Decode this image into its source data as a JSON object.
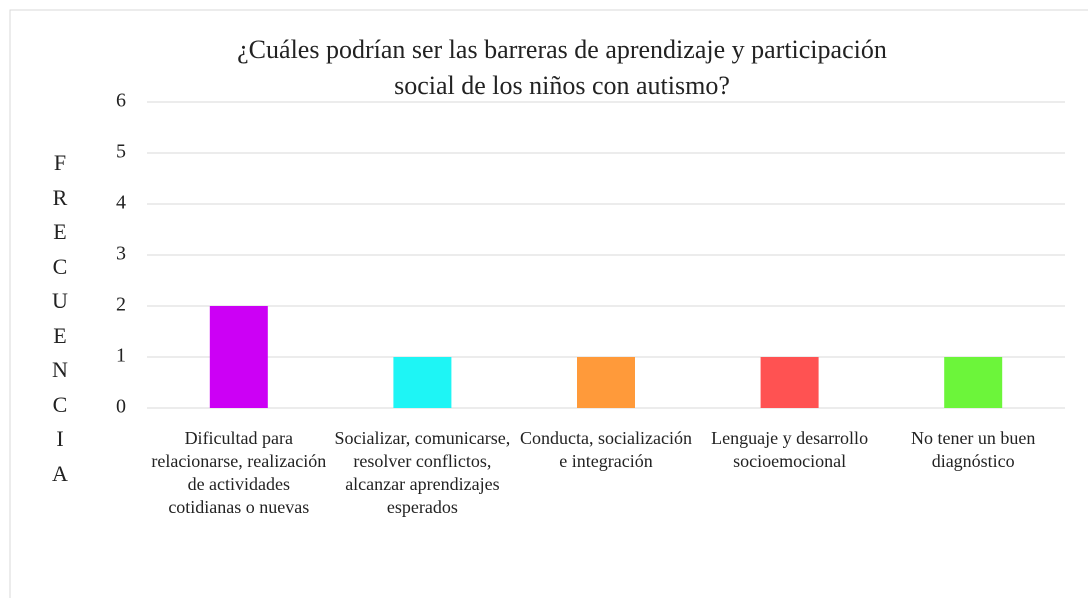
{
  "chart_data": {
    "type": "bar",
    "title": [
      "¿Cuáles podrían ser las barreras de aprendizaje y participación",
      "social de los niños con autismo?"
    ],
    "ylabel": "FRECUENCIA",
    "categories": [
      "Dificultad para relacionarse, realización de actividades cotidianas o nuevas",
      "Socializar, comunicarse, resolver conflictos, alcanzar aprendizajes esperados",
      "Conducta, socialización e integración",
      "Lenguaje y desarrollo socioemocional",
      "No tener un buen diagnóstico"
    ],
    "values": [
      2,
      1,
      1,
      1,
      1
    ],
    "colors": [
      "#cc00f5",
      "#1ef5f5",
      "#ff9a3a",
      "#ff5252",
      "#6cf53a"
    ],
    "ylim": [
      0,
      6
    ],
    "yticks": [
      0,
      1,
      2,
      3,
      4,
      5,
      6
    ],
    "grid": true
  }
}
